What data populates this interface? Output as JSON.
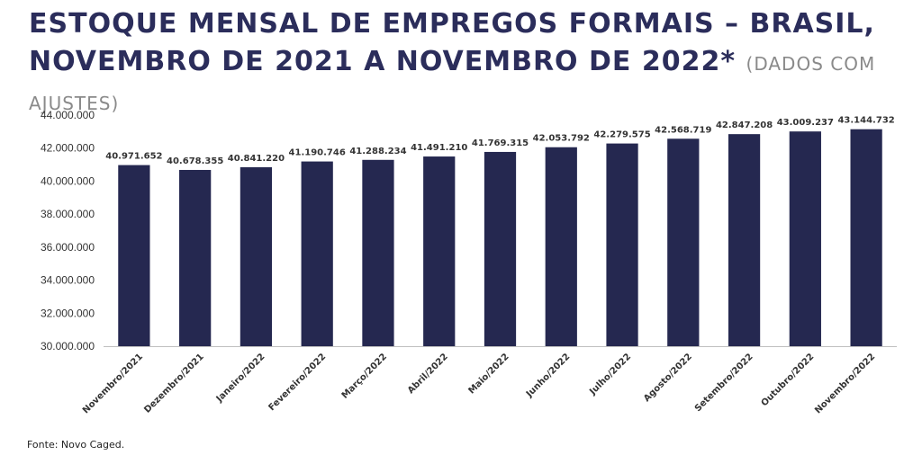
{
  "title": {
    "line1": "ESTOQUE MENSAL DE EMPREGOS FORMAIS – BRASIL,",
    "line2": "NOVEMBRO DE 2021 A NOVEMBRO DE 2022",
    "asterisk": "*",
    "note": "(DADOS COM AJUSTES)"
  },
  "source": "Fonte: Novo Caged.",
  "colors": {
    "bar": "#252850",
    "title": "#2b2d5b",
    "note": "#8a8a8a"
  },
  "chart_data": {
    "type": "bar",
    "categories": [
      "Novembro/2021",
      "Dezembro/2021",
      "Janeiro/2022",
      "Fevereiro/2022",
      "Março/2022",
      "Abril/2022",
      "Maio/2022",
      "Junho/2022",
      "Julho/2022",
      "Agosto/2022",
      "Setembro/2022",
      "Outubro/2022",
      "Novembro/2022"
    ],
    "values": [
      40971652,
      40678355,
      40841220,
      41190746,
      41288234,
      41491210,
      41769315,
      42053792,
      42279575,
      42568719,
      42847208,
      43009237,
      43144732
    ],
    "value_labels": [
      "40.971.652",
      "40.678.355",
      "40.841.220",
      "41.190.746",
      "41.288.234",
      "41.491.210",
      "41.769.315",
      "42.053.792",
      "42.279.575",
      "42.568.719",
      "42.847.208",
      "43.009.237",
      "43.144.732"
    ],
    "yticks": [
      30000000,
      32000000,
      34000000,
      36000000,
      38000000,
      40000000,
      42000000,
      44000000
    ],
    "ytick_labels": [
      "30.000.000",
      "32.000.000",
      "34.000.000",
      "36.000.000",
      "38.000.000",
      "40.000.000",
      "42.000.000",
      "44.000.000"
    ],
    "ylim": [
      30000000,
      44000000
    ],
    "grid": false,
    "legend": "none"
  }
}
